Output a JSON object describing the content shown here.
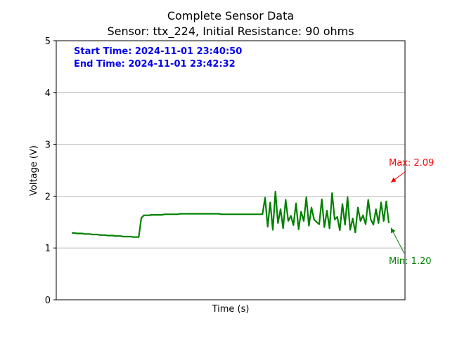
{
  "chart_data": {
    "type": "line",
    "title": "Complete Sensor Data",
    "subtitle": "Sensor: ttx_224, Initial Resistance: 90 ohms",
    "xlabel": "Time (s)",
    "ylabel": "Voltage (V)",
    "ylim": [
      0,
      5
    ],
    "yticks": [
      0,
      1,
      2,
      3,
      4,
      5
    ],
    "ytick_labels": [
      "0",
      "1",
      "2",
      "3",
      "4",
      "5"
    ],
    "grid": "horizontal",
    "start_time": "Start Time: 2024-11-01 23:40:50",
    "end_time": "End Time: 2024-11-01 23:42:32",
    "series": [
      {
        "color": "#008000",
        "values": [
          1.29,
          1.29,
          1.28,
          1.28,
          1.28,
          1.27,
          1.27,
          1.27,
          1.26,
          1.26,
          1.26,
          1.25,
          1.25,
          1.25,
          1.24,
          1.24,
          1.24,
          1.23,
          1.23,
          1.23,
          1.22,
          1.22,
          1.22,
          1.22,
          1.21,
          1.21,
          1.21,
          1.58,
          1.63,
          1.63,
          1.63,
          1.64,
          1.64,
          1.64,
          1.64,
          1.64,
          1.65,
          1.65,
          1.65,
          1.65,
          1.65,
          1.65,
          1.66,
          1.66,
          1.66,
          1.66,
          1.66,
          1.66,
          1.66,
          1.66,
          1.66,
          1.66,
          1.66,
          1.66,
          1.66,
          1.66,
          1.66,
          1.66,
          1.65,
          1.65,
          1.65,
          1.65,
          1.65,
          1.65,
          1.65,
          1.65,
          1.65,
          1.65,
          1.65,
          1.65,
          1.65,
          1.65,
          1.65,
          1.65,
          1.65,
          1.97,
          1.41,
          1.88,
          1.35,
          2.09,
          1.48,
          1.75,
          1.38,
          1.93,
          1.52,
          1.62,
          1.44,
          1.86,
          1.36,
          1.7,
          1.52,
          1.98,
          1.43,
          1.78,
          1.55,
          1.5,
          1.46,
          1.94,
          1.4,
          1.72,
          1.38,
          2.06,
          1.55,
          1.6,
          1.34,
          1.85,
          1.45,
          1.98,
          1.35,
          1.57,
          1.3,
          1.78,
          1.52,
          1.63,
          1.46,
          1.93,
          1.55,
          1.45,
          1.75,
          1.48,
          1.88,
          1.52,
          1.9,
          1.48
        ]
      }
    ],
    "annotations": {
      "max_label": "Max: 2.09",
      "max_value": 2.09,
      "min_label": "Min: 1.20",
      "min_value": 1.2,
      "max_color": "#ff0000",
      "min_color": "#008000"
    }
  }
}
